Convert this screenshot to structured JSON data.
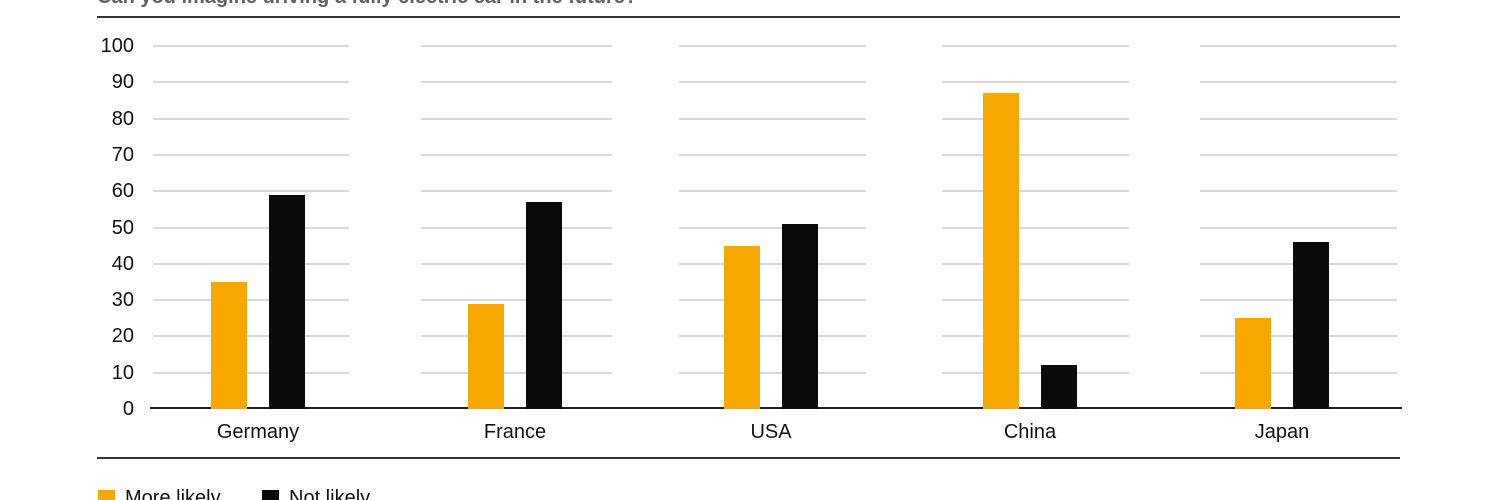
{
  "title": "Can you imagine driving a fully electric car in the future?",
  "colors": {
    "more_likely": "#F6A800",
    "not_likely": "#0B0B0B",
    "grid_line": "#D9D9D9",
    "axis_line": "#1F1F1F",
    "divider_line": "#333333",
    "title_text": "#616161",
    "label_text": "#111111",
    "background": "#FFFFFF"
  },
  "chart_data": {
    "type": "bar",
    "title": "Can you imagine driving a fully electric car in the future?",
    "categories": [
      "Germany",
      "France",
      "USA",
      "China",
      "Japan"
    ],
    "series": [
      {
        "name": "More likely",
        "color": "#F6A800",
        "values": [
          35,
          29,
          45,
          87,
          25
        ]
      },
      {
        "name": "Not likely",
        "color": "#0B0B0B",
        "values": [
          59,
          57,
          51,
          12,
          46
        ]
      }
    ],
    "xlabel": "",
    "ylabel": "",
    "ylim": [
      0,
      100
    ],
    "yticks": [
      0,
      10,
      20,
      30,
      40,
      50,
      60,
      70,
      80,
      90,
      100
    ],
    "grid": "horizontal gridlines, segmented per category band",
    "legend_position": "bottom-left",
    "legend": [
      "More likely",
      "Not likely"
    ]
  }
}
